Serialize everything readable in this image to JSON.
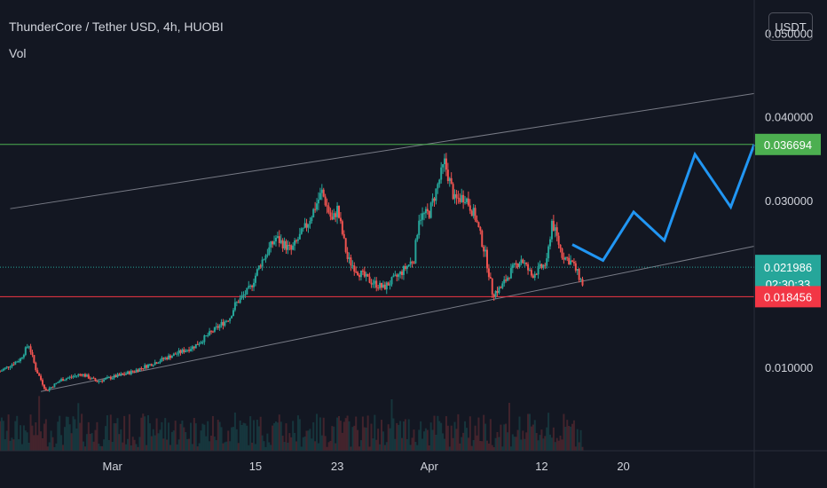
{
  "header": {
    "title": "ThunderCore / Tether USD, 4h, HUOBI",
    "volume_label": "Vol",
    "currency_button": "USDT"
  },
  "colors": {
    "background": "#131722",
    "up_candle": "#26a69a",
    "down_candle": "#ef5350",
    "resistance_line": "#4caf50",
    "support_line": "#f23645",
    "projection_line": "#2196f3",
    "channel_line": "#787b86",
    "axis_text": "#d1d4dc"
  },
  "chart_data": {
    "type": "line",
    "title": "ThunderCore / Tether USD, 4h, HUOBI",
    "ylim": [
      0.0,
      0.054
    ],
    "y_ticks": [
      {
        "value": 0.05,
        "label": "0.050000"
      },
      {
        "value": 0.04,
        "label": "0.040000"
      },
      {
        "value": 0.03,
        "label": "0.030000"
      },
      {
        "value": 0.01,
        "label": "0.010000"
      }
    ],
    "x_ticks": [
      {
        "label": "Mar",
        "day": 0
      },
      {
        "label": "15",
        "day": 14
      },
      {
        "label": "23",
        "day": 22
      },
      {
        "label": "Apr",
        "day": 31
      },
      {
        "label": "12",
        "day": 42
      },
      {
        "label": "20",
        "day": 50
      }
    ],
    "xlim_days": [
      -11,
      62.8
    ],
    "x_axis_note": "x values in days from Mar 1",
    "price_series": {
      "name": "price",
      "points": [
        [
          -11,
          0.0095
        ],
        [
          -9,
          0.011
        ],
        [
          -8.2,
          0.0128
        ],
        [
          -7.5,
          0.0098
        ],
        [
          -6.5,
          0.0072
        ],
        [
          -5,
          0.0085
        ],
        [
          -3,
          0.0092
        ],
        [
          -1.5,
          0.0083
        ],
        [
          0,
          0.0088
        ],
        [
          2,
          0.0095
        ],
        [
          4,
          0.0105
        ],
        [
          6,
          0.0115
        ],
        [
          8,
          0.0125
        ],
        [
          10,
          0.0145
        ],
        [
          11.5,
          0.016
        ],
        [
          12,
          0.0175
        ],
        [
          13.5,
          0.0195
        ],
        [
          14.5,
          0.0225
        ],
        [
          16,
          0.0255
        ],
        [
          17.5,
          0.024
        ],
        [
          19,
          0.027
        ],
        [
          20.5,
          0.031
        ],
        [
          21.5,
          0.0275
        ],
        [
          22,
          0.029
        ],
        [
          23,
          0.023
        ],
        [
          24,
          0.0215
        ],
        [
          25,
          0.0205
        ],
        [
          26.5,
          0.0195
        ],
        [
          28,
          0.021
        ],
        [
          29.5,
          0.023
        ],
        [
          30,
          0.028
        ],
        [
          31,
          0.0285
        ],
        [
          32.5,
          0.0345
        ],
        [
          33.5,
          0.03
        ],
        [
          34.5,
          0.0305
        ],
        [
          35.5,
          0.028
        ],
        [
          36.5,
          0.0235
        ],
        [
          37.2,
          0.0188
        ],
        [
          38,
          0.0195
        ],
        [
          39,
          0.0215
        ],
        [
          40,
          0.023
        ],
        [
          41,
          0.021
        ],
        [
          42.5,
          0.0225
        ],
        [
          43,
          0.0275
        ],
        [
          44,
          0.0235
        ],
        [
          45,
          0.0225
        ],
        [
          46,
          0.02
        ]
      ]
    },
    "projection_series": {
      "name": "projection",
      "points": [
        [
          45,
          0.0247
        ],
        [
          48,
          0.0228
        ],
        [
          51,
          0.0286
        ],
        [
          54,
          0.0252
        ],
        [
          57,
          0.0355
        ],
        [
          60.5,
          0.0292
        ],
        [
          62.8,
          0.0367
        ]
      ]
    },
    "channel_lines": [
      {
        "name": "upper-channel",
        "points": [
          [
            -10,
            0.029
          ],
          [
            62.8,
            0.0428
          ]
        ]
      },
      {
        "name": "lower-channel",
        "points": [
          [
            -7,
            0.0071
          ],
          [
            62.8,
            0.0245
          ]
        ]
      }
    ],
    "levels": [
      {
        "name": "resistance",
        "value": 0.036694,
        "label": "0.036694"
      },
      {
        "name": "current-price",
        "value": 0.021986,
        "label": "0.021986",
        "timer": "02:30:33"
      },
      {
        "name": "support",
        "value": 0.018456,
        "label": "0.018456"
      }
    ]
  }
}
